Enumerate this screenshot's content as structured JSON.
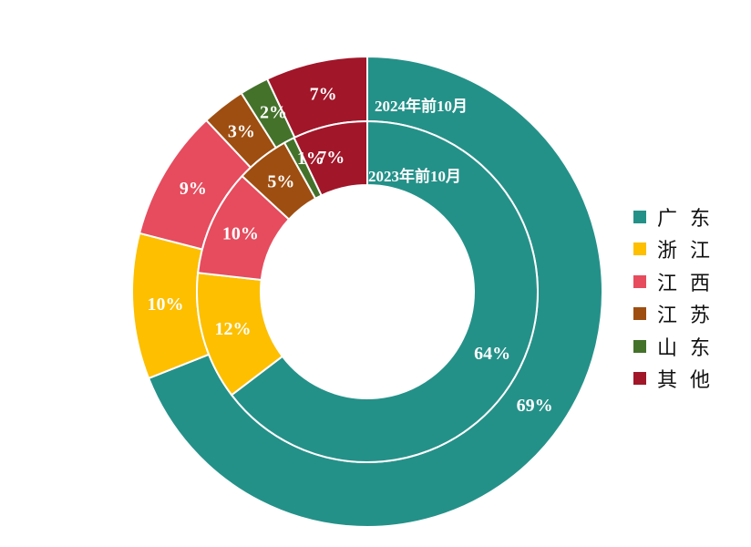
{
  "chart_data": {
    "type": "pie",
    "subtype": "nested-donut",
    "categories": [
      "广东",
      "浙江",
      "江西",
      "江苏",
      "山东",
      "其他"
    ],
    "colors": [
      "#249189",
      "#FDBF00",
      "#E64C5E",
      "#9E4E10",
      "#44722B",
      "#A11629"
    ],
    "series": [
      {
        "name": "2024年前10月",
        "ring": "outer",
        "values": [
          69,
          10,
          9,
          3,
          2,
          7
        ],
        "labels": [
          "69%",
          "10%",
          "9%",
          "3%",
          "2%",
          "7%"
        ]
      },
      {
        "name": "2023年前10月",
        "ring": "inner",
        "values": [
          64,
          12,
          10,
          5,
          1,
          7
        ],
        "labels": [
          "64%",
          "12%",
          "10%",
          "5%",
          "1%",
          "7%"
        ]
      }
    ],
    "legend": "right",
    "direction": "clockwise from top"
  }
}
